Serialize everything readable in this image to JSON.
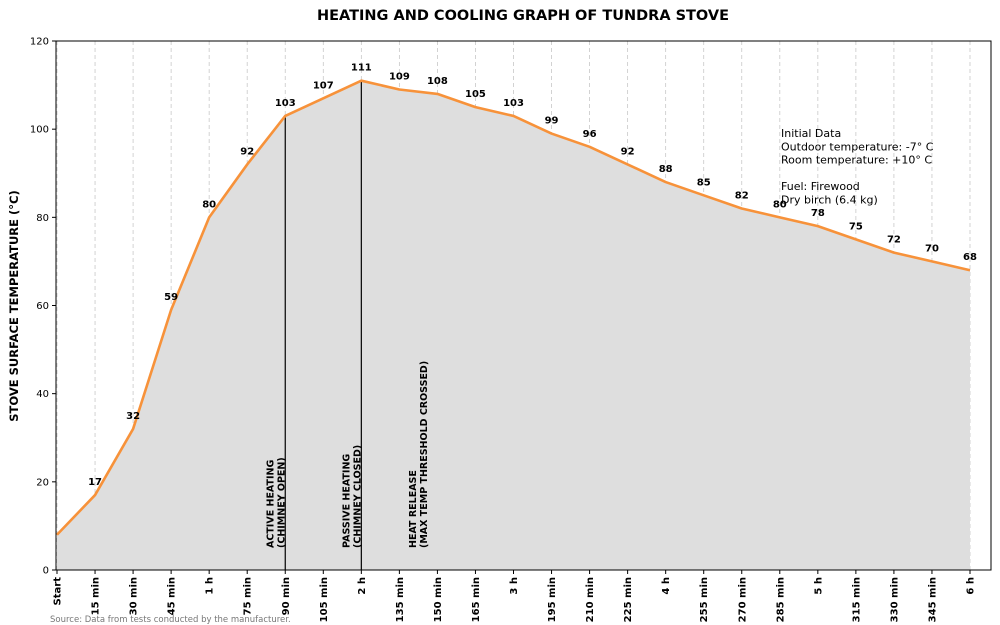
{
  "chart_data": {
    "type": "area",
    "title": "HEATING AND COOLING GRAPH OF TUNDRA STOVE",
    "xlabel": "",
    "ylabel": "STOVE SURFACE TEMPERATURE (°C)",
    "ylim": [
      0,
      120
    ],
    "yticks": [
      0,
      20,
      40,
      60,
      80,
      100,
      120
    ],
    "grid": "vertical dashed",
    "categories": [
      "Start",
      "15 min",
      "30 min",
      "45 min",
      "1 h",
      "75 min",
      "90 min",
      "105 min",
      "2 h",
      "135 min",
      "150 min",
      "165 min",
      "3 h",
      "195 min",
      "210 min",
      "225 min",
      "4 h",
      "255 min",
      "270 min",
      "285 min",
      "5 h",
      "315 min",
      "330 min",
      "345 min",
      "6 h"
    ],
    "values": [
      8,
      17,
      32,
      59,
      80,
      92,
      103,
      107,
      111,
      109,
      108,
      105,
      103,
      99,
      96,
      92,
      88,
      85,
      82,
      80,
      78,
      75,
      72,
      70,
      68
    ],
    "data_labels_shown_from_index": 1,
    "line_color": "#f7923a",
    "fill_color": "#dedede",
    "vlines": [
      {
        "category": "90 min",
        "label_lines": [
          "ACTIVE HEATING",
          "(CHIMNEY OPEN)"
        ]
      },
      {
        "category": "2 h",
        "label_lines": [
          "PASSIVE HEATING",
          "(CHIMNEY CLOSED)"
        ]
      }
    ],
    "annotation": {
      "label_lines": [
        "HEAT RELEASE",
        "(MAX TEMP THRESHOLD CROSSED)"
      ]
    },
    "info_box": [
      "Initial Data",
      "Outdoor temperature: -7° C",
      "Room temperature: +10° C",
      "",
      "Fuel: Firewood",
      "Dry birch (6.4 kg)"
    ],
    "source": "Source: Data from tests conducted by the manufacturer."
  }
}
